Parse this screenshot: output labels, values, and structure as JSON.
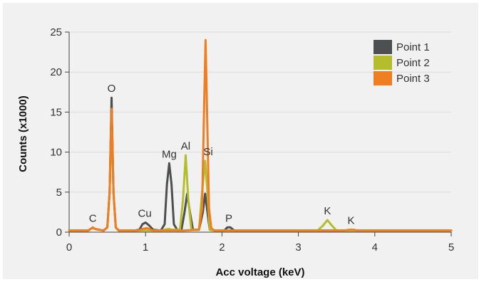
{
  "chart_data": {
    "type": "line",
    "xlabel": "Acc voltage (keV)",
    "ylabel": "Counts (x1000)",
    "xlim": [
      0,
      5
    ],
    "ylim": [
      0,
      25
    ],
    "xticks": [
      0,
      1,
      2,
      3,
      4,
      5
    ],
    "yticks": [
      0,
      5,
      10,
      15,
      20,
      25
    ],
    "grid": "horizontal",
    "legend_position": "top-right",
    "series": [
      {
        "name": "Point 1",
        "color": "#4d4f51",
        "x": [
          0.0,
          0.25,
          0.28,
          0.31,
          0.34,
          0.45,
          0.5,
          0.53,
          0.555,
          0.58,
          0.61,
          0.65,
          0.85,
          0.92,
          0.96,
          1.0,
          1.04,
          1.1,
          1.2,
          1.25,
          1.28,
          1.31,
          1.34,
          1.37,
          1.42,
          1.47,
          1.51,
          1.545,
          1.58,
          1.62,
          1.7,
          1.75,
          1.78,
          1.81,
          1.84,
          1.9,
          2.03,
          2.07,
          2.11,
          2.16,
          2.3,
          5.0
        ],
        "y": [
          0.2,
          0.2,
          0.4,
          0.5,
          0.4,
          0.2,
          0.6,
          5.0,
          16.8,
          5.0,
          0.6,
          0.2,
          0.2,
          0.3,
          1.0,
          1.2,
          0.9,
          0.3,
          0.2,
          1.0,
          6.0,
          8.6,
          6.0,
          1.0,
          0.2,
          0.3,
          2.5,
          4.8,
          2.5,
          0.3,
          0.3,
          2.5,
          4.8,
          2.5,
          0.3,
          0.2,
          0.2,
          0.6,
          0.6,
          0.2,
          0.2,
          0.2
        ]
      },
      {
        "name": "Point 2",
        "color": "#b5bd2c",
        "x": [
          0.0,
          0.25,
          0.28,
          0.31,
          0.34,
          0.45,
          0.5,
          0.53,
          0.555,
          0.58,
          0.61,
          0.65,
          1.2,
          1.25,
          1.3,
          1.35,
          1.45,
          1.49,
          1.525,
          1.56,
          1.6,
          1.7,
          1.74,
          1.78,
          1.81,
          1.84,
          1.9,
          2.0,
          3.25,
          3.32,
          3.38,
          3.44,
          3.5,
          5.0
        ],
        "y": [
          0.2,
          0.2,
          0.4,
          0.5,
          0.4,
          0.2,
          0.6,
          5.0,
          15.0,
          5.0,
          0.6,
          0.2,
          0.2,
          0.3,
          0.4,
          0.3,
          0.3,
          4.0,
          9.6,
          4.0,
          0.3,
          0.3,
          5.0,
          8.9,
          5.0,
          0.3,
          0.2,
          0.2,
          0.2,
          0.8,
          1.5,
          0.8,
          0.2,
          0.2
        ]
      },
      {
        "name": "Point 3",
        "color": "#ef7d22",
        "x": [
          0.0,
          0.25,
          0.28,
          0.31,
          0.34,
          0.45,
          0.5,
          0.53,
          0.555,
          0.58,
          0.61,
          0.65,
          0.9,
          0.96,
          1.02,
          1.1,
          1.5,
          1.7,
          1.74,
          1.765,
          1.785,
          1.805,
          1.83,
          1.86,
          1.9,
          1.95,
          3.6,
          3.66,
          3.72,
          3.78,
          5.0
        ],
        "y": [
          0.2,
          0.2,
          0.4,
          0.6,
          0.4,
          0.2,
          0.6,
          5.0,
          15.4,
          5.0,
          0.6,
          0.2,
          0.2,
          0.4,
          0.5,
          0.2,
          0.2,
          0.3,
          3.0,
          15.0,
          24.0,
          15.0,
          3.0,
          0.5,
          0.2,
          0.2,
          0.2,
          0.3,
          0.3,
          0.2,
          0.2
        ]
      }
    ],
    "annotations": [
      {
        "text": "C",
        "x": 0.31,
        "y": 0.6
      },
      {
        "text": "O",
        "x": 0.555,
        "y": 16.8
      },
      {
        "text": "Cu",
        "x": 0.99,
        "y": 1.2
      },
      {
        "text": "Mg",
        "x": 1.31,
        "y": 8.6
      },
      {
        "text": "Al",
        "x": 1.525,
        "y": 9.6
      },
      {
        "text": "Si",
        "x": 1.82,
        "y": 8.9
      },
      {
        "text": "P",
        "x": 2.09,
        "y": 0.6
      },
      {
        "text": "K",
        "x": 3.38,
        "y": 1.5
      },
      {
        "text": "K",
        "x": 3.69,
        "y": 0.3
      }
    ]
  }
}
